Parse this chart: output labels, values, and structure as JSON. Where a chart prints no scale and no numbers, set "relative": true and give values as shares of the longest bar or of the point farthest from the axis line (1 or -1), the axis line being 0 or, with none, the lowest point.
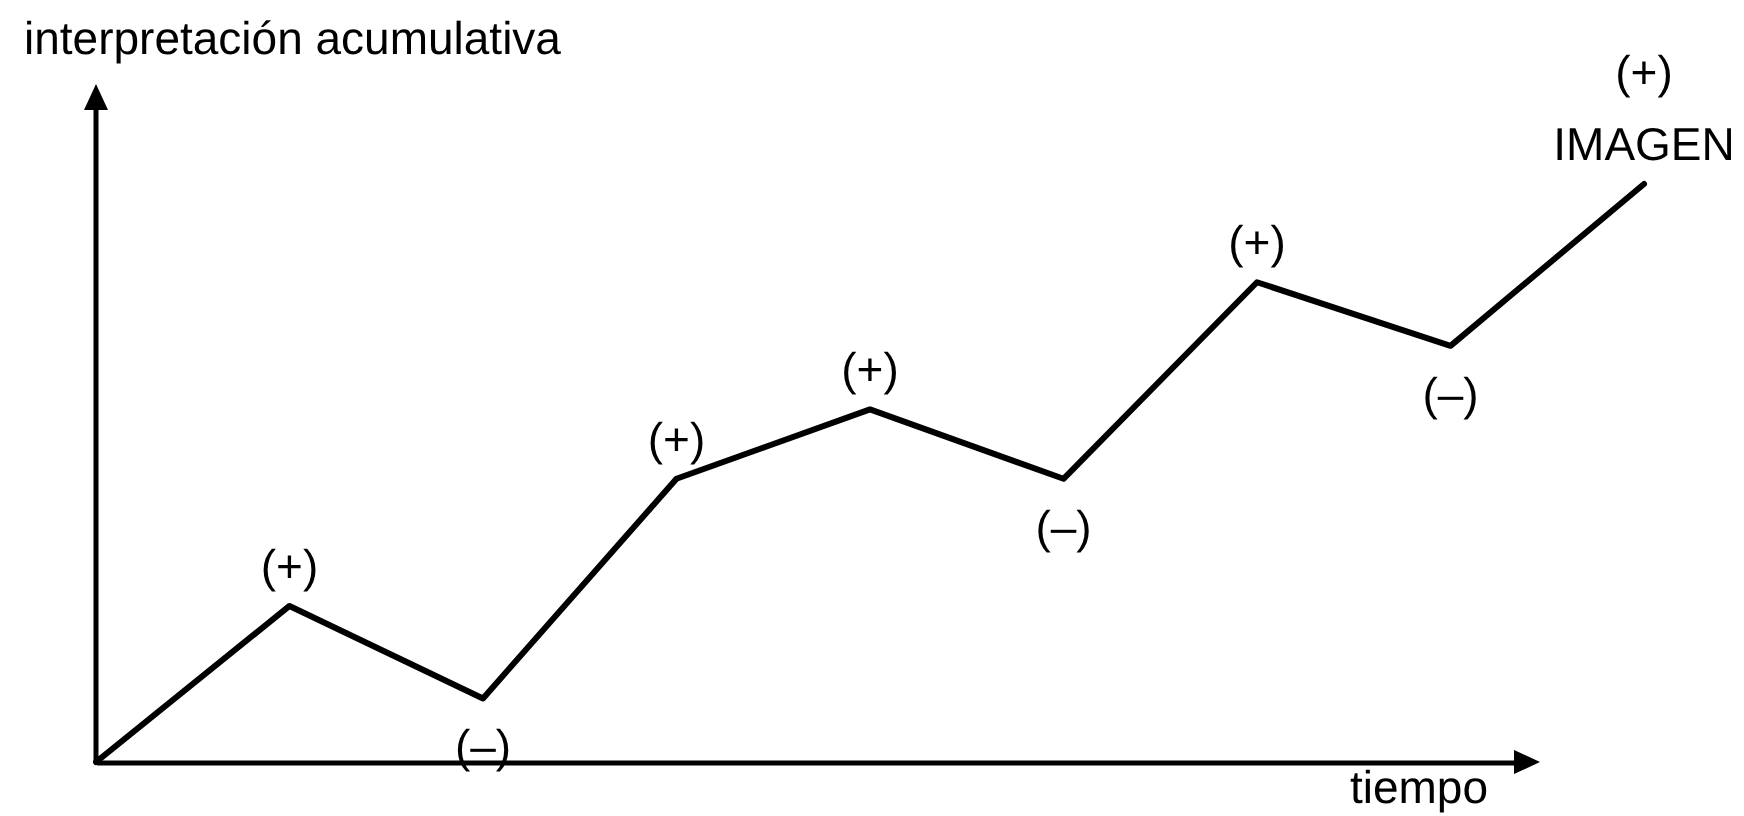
{
  "chart_data": {
    "type": "line",
    "relative": true,
    "xlabel": "tiempo",
    "ylabel": "interpretación acumulativa",
    "categories": [
      null,
      null,
      null,
      null,
      null,
      null,
      null,
      null,
      null
    ],
    "values": [
      0,
      0.27,
      0.11,
      0.49,
      0.61,
      0.49,
      0.83,
      0.72,
      1
    ],
    "color": "#000000",
    "annotations": [
      {
        "text": "(+)",
        "y": 0.27
      },
      {
        "text": "(–)",
        "y": 0.11
      },
      {
        "text": "(+)",
        "y": 0.49
      },
      {
        "text": "(+)",
        "y": 0.61
      },
      {
        "text": "(–)",
        "y": 0.49
      },
      {
        "text": "(+)",
        "y": 0.83
      },
      {
        "text": "(–)",
        "y": 0.72
      },
      {
        "text": "(+)",
        "y": 1
      },
      {
        "text": "IMAGEN",
        "y": 1
      }
    ]
  }
}
